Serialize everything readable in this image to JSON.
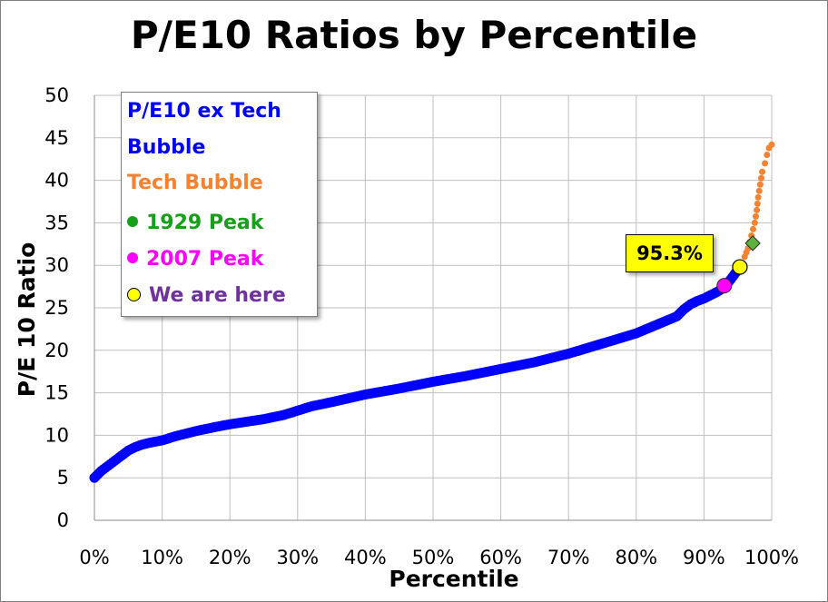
{
  "chart_data": {
    "type": "scatter",
    "title": "P/E10 Ratios by Percentile",
    "xlabel": "Percentile",
    "ylabel": "P/E 10 Ratio",
    "xlim": [
      0,
      1
    ],
    "ylim": [
      0,
      50
    ],
    "x_ticks": [
      "0%",
      "10%",
      "20%",
      "30%",
      "40%",
      "50%",
      "60%",
      "70%",
      "80%",
      "90%",
      "100%"
    ],
    "y_ticks": [
      "0",
      "5",
      "10",
      "15",
      "20",
      "25",
      "30",
      "35",
      "40",
      "45",
      "50"
    ],
    "grid": true,
    "legend_position": "top-left",
    "series": [
      {
        "name": "P/E10 ex Tech Bubble",
        "color": "#0000ff",
        "x": [
          0.0,
          0.01,
          0.02,
          0.03,
          0.04,
          0.05,
          0.06,
          0.07,
          0.08,
          0.1,
          0.12,
          0.15,
          0.18,
          0.2,
          0.25,
          0.28,
          0.3,
          0.32,
          0.35,
          0.4,
          0.45,
          0.5,
          0.55,
          0.6,
          0.65,
          0.7,
          0.75,
          0.8,
          0.83,
          0.86,
          0.87,
          0.88,
          0.89,
          0.9,
          0.92,
          0.93,
          0.94,
          0.953
        ],
        "y": [
          5.0,
          5.8,
          6.4,
          7.0,
          7.6,
          8.2,
          8.6,
          8.9,
          9.1,
          9.4,
          9.9,
          10.5,
          11.0,
          11.3,
          11.9,
          12.4,
          12.9,
          13.4,
          13.9,
          14.8,
          15.5,
          16.3,
          17.0,
          17.8,
          18.6,
          19.6,
          20.8,
          22.0,
          23.0,
          24.0,
          24.8,
          25.4,
          25.8,
          26.1,
          26.9,
          27.4,
          28.4,
          29.8
        ]
      },
      {
        "name": "Tech Bubble",
        "color": "#f58231",
        "x": [
          0.953,
          0.96,
          0.965,
          0.97,
          0.975,
          0.978,
          0.98,
          0.983,
          0.986,
          0.99,
          0.993,
          0.996,
          1.0
        ],
        "y": [
          30.2,
          31.0,
          32.0,
          33.5,
          35.0,
          36.5,
          38.0,
          39.5,
          41.0,
          42.0,
          43.0,
          43.8,
          44.2
        ]
      }
    ],
    "highlights": [
      {
        "name": "1929 Peak",
        "x": 0.972,
        "y": 32.6,
        "color": "#5fb13f",
        "shape": "diamond"
      },
      {
        "name": "2007 Peak",
        "x": 0.93,
        "y": 27.6,
        "color": "#ff00ff",
        "shape": "circle"
      },
      {
        "name": "We are here",
        "x": 0.953,
        "y": 29.8,
        "color": "#ffff00",
        "shape": "circle"
      }
    ],
    "annotation": {
      "text": "95.3%",
      "x": 0.953,
      "y": 29.8
    }
  },
  "legend": {
    "items": [
      {
        "label": "P/E10 ex Tech",
        "color": "#0000ff"
      },
      {
        "label": "Bubble",
        "color": "#0000ff"
      },
      {
        "label": "Tech Bubble",
        "color": "#f58231"
      },
      {
        "label": "1929 Peak",
        "color": "#16a01a",
        "marker": "green-dot"
      },
      {
        "label": "2007 Peak",
        "color": "#ff00ff",
        "marker": "magenta-dot"
      },
      {
        "label": "We are here",
        "color": "#7030a0",
        "marker": "yellow-dot"
      }
    ]
  }
}
